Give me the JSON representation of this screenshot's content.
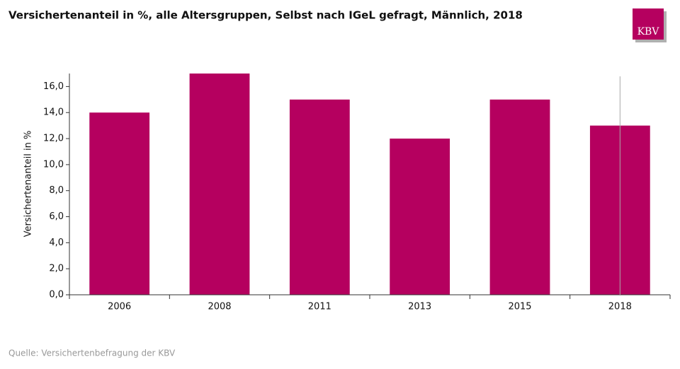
{
  "chart_data": {
    "type": "bar",
    "title": "Versichertenanteil in %, alle Altersgruppen, Selbst nach IGeL gefragt, Männlich, 2018",
    "y_label": "Versichertenanteil in %",
    "source": "Quelle: Versichertenbefragung der KBV",
    "logo": "KBV",
    "categories": [
      "2006",
      "2008",
      "2011",
      "2013",
      "2015",
      "2018"
    ],
    "values": [
      14,
      17,
      15,
      12,
      15,
      13
    ],
    "color": "#b5005f",
    "ylim": [
      0,
      17
    ],
    "yticks": [
      {
        "value": 0,
        "label": "0,0"
      },
      {
        "value": 2,
        "label": "2,0"
      },
      {
        "value": 4,
        "label": "4,0"
      },
      {
        "value": 6,
        "label": "6,0"
      },
      {
        "value": 8,
        "label": "8,0"
      },
      {
        "value": 10,
        "label": "10,0"
      },
      {
        "value": 12,
        "label": "12,0"
      },
      {
        "value": 14,
        "label": "14,0"
      },
      {
        "value": 16,
        "label": "16,0"
      }
    ]
  }
}
